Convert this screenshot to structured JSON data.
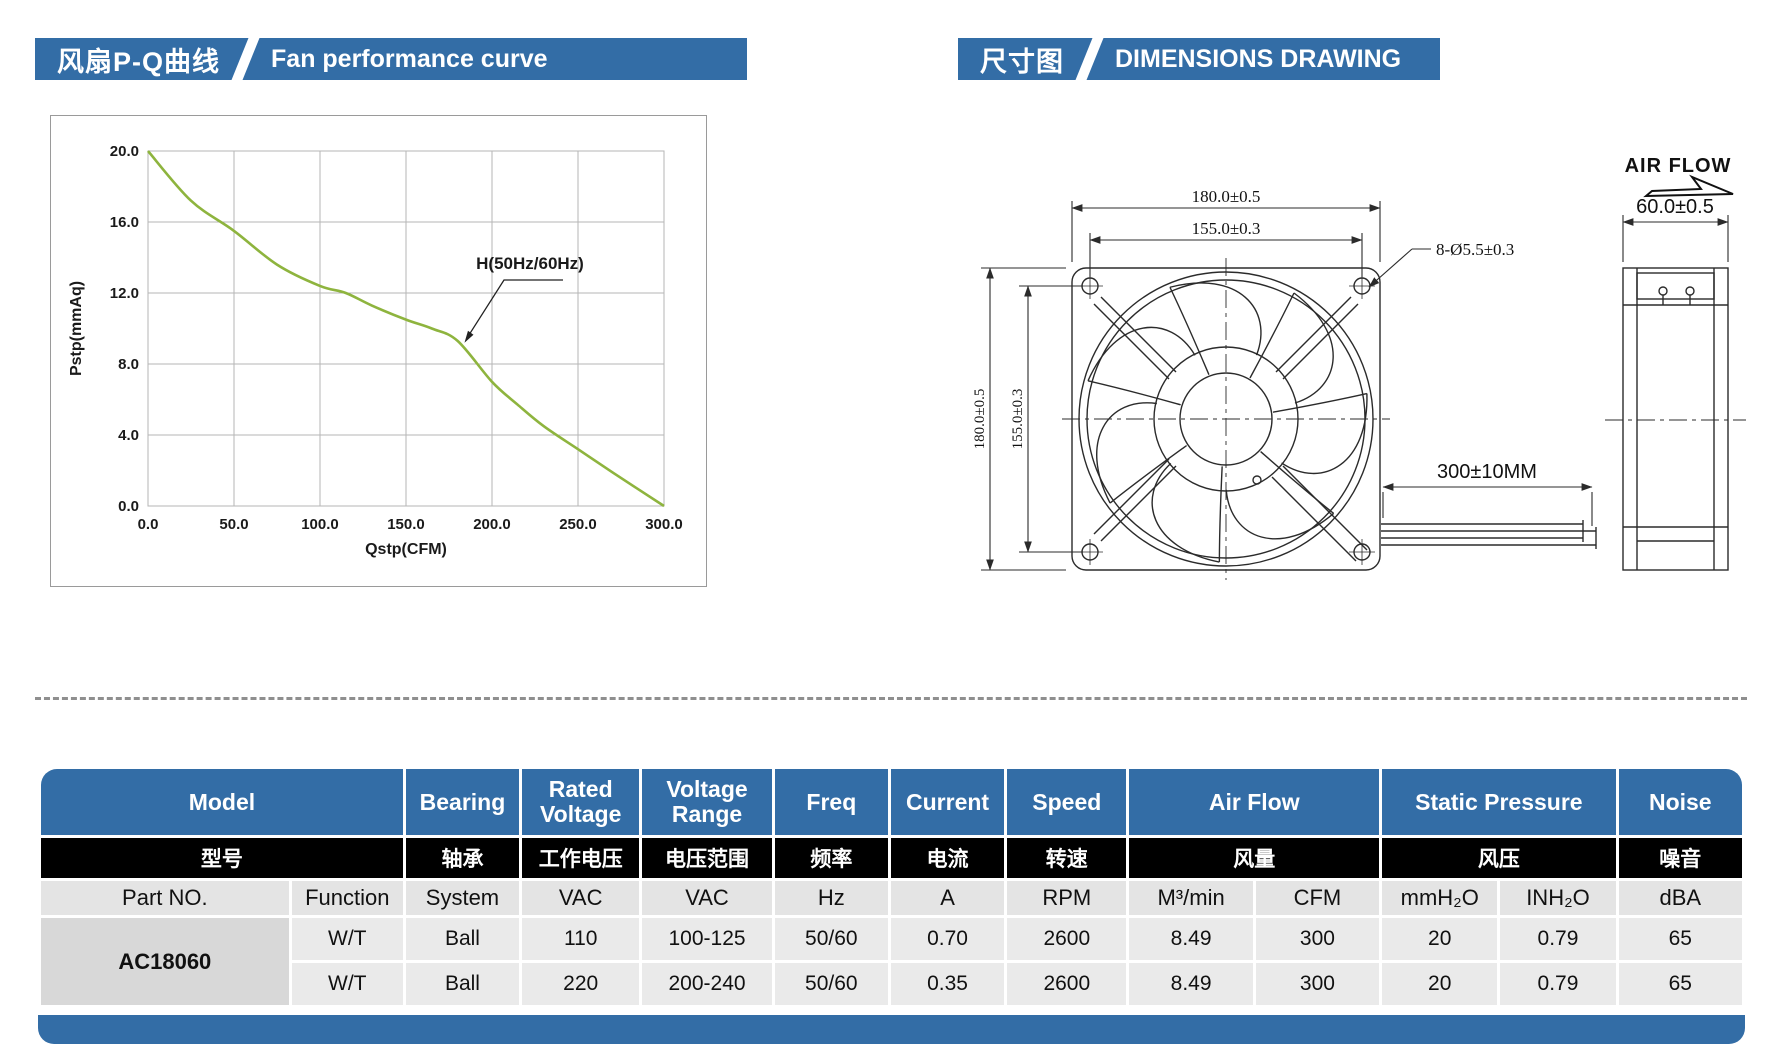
{
  "page": {
    "bg": "#ffffff",
    "accent": "#336da6"
  },
  "banners": {
    "left": {
      "cn": "风扇P-Q曲线",
      "en": "Fan performance curve"
    },
    "right": {
      "cn": "尺寸图",
      "en": "DIMENSIONS DRAWING"
    }
  },
  "chart_data": {
    "type": "line",
    "title": "",
    "xlabel": "Qstp(CFM)",
    "ylabel": "Pstp(mmAq)",
    "xlim": [
      0,
      300
    ],
    "ylim": [
      0,
      20
    ],
    "xticks": [
      "0.0",
      "50.0",
      "100.0",
      "150.0",
      "200.0",
      "250.0",
      "300.0"
    ],
    "yticks": [
      "0.0",
      "4.0",
      "8.0",
      "12.0",
      "16.0",
      "20.0"
    ],
    "grid": true,
    "legend": "none",
    "series": [
      {
        "name": "H(50Hz/60Hz)",
        "color": "#8eb43e",
        "points": [
          [
            0,
            20.0
          ],
          [
            25,
            17.2
          ],
          [
            50,
            15.5
          ],
          [
            75,
            13.6
          ],
          [
            100,
            12.4
          ],
          [
            115,
            12.0
          ],
          [
            130,
            11.3
          ],
          [
            150,
            10.5
          ],
          [
            165,
            10.0
          ],
          [
            180,
            9.3
          ],
          [
            200,
            7.0
          ],
          [
            215,
            5.7
          ],
          [
            230,
            4.5
          ],
          [
            250,
            3.2
          ],
          [
            270,
            1.9
          ],
          [
            300,
            0.0
          ]
        ]
      }
    ],
    "annotation": {
      "text": "H(50Hz/60Hz)",
      "target_x": 184,
      "target_y": 9.2
    }
  },
  "drawing": {
    "front": {
      "dim_width_outer": "180.0±0.5",
      "dim_width_holes": "155.0±0.3",
      "dim_height_outer": "180.0±0.5",
      "dim_height_holes": "155.0±0.3",
      "holes_label": "8-Ø5.5±0.3",
      "wire_length": "300±10MM"
    },
    "side": {
      "depth": "60.0±0.5",
      "airflow_label": "AIR FLOW"
    }
  },
  "table": {
    "header_en": [
      "Model",
      "Bearing",
      "Rated Voltage",
      "Voltage Range",
      "Freq",
      "Current",
      "Speed",
      "Air Flow",
      "Static Pressure",
      "Noise"
    ],
    "header_cn": [
      "型号",
      "轴承",
      "工作电压",
      "电压范围",
      "频率",
      "电流",
      "转速",
      "风量",
      "风压",
      "噪音"
    ],
    "units": [
      "Part NO.",
      "Function",
      "System",
      "VAC",
      "VAC",
      "Hz",
      "A",
      "RPM",
      "M³/min",
      "CFM",
      "mmH₂O",
      "INH₂O",
      "dBA"
    ],
    "rows": [
      {
        "part_no": "AC18060",
        "cells": [
          "W/T",
          "Ball",
          "110",
          "100-125",
          "50/60",
          "0.70",
          "2600",
          "8.49",
          "300",
          "20",
          "0.79",
          "65"
        ]
      },
      {
        "cells": [
          "W/T",
          "Ball",
          "220",
          "200-240",
          "50/60",
          "0.35",
          "2600",
          "8.49",
          "300",
          "20",
          "0.79",
          "65"
        ]
      }
    ]
  }
}
